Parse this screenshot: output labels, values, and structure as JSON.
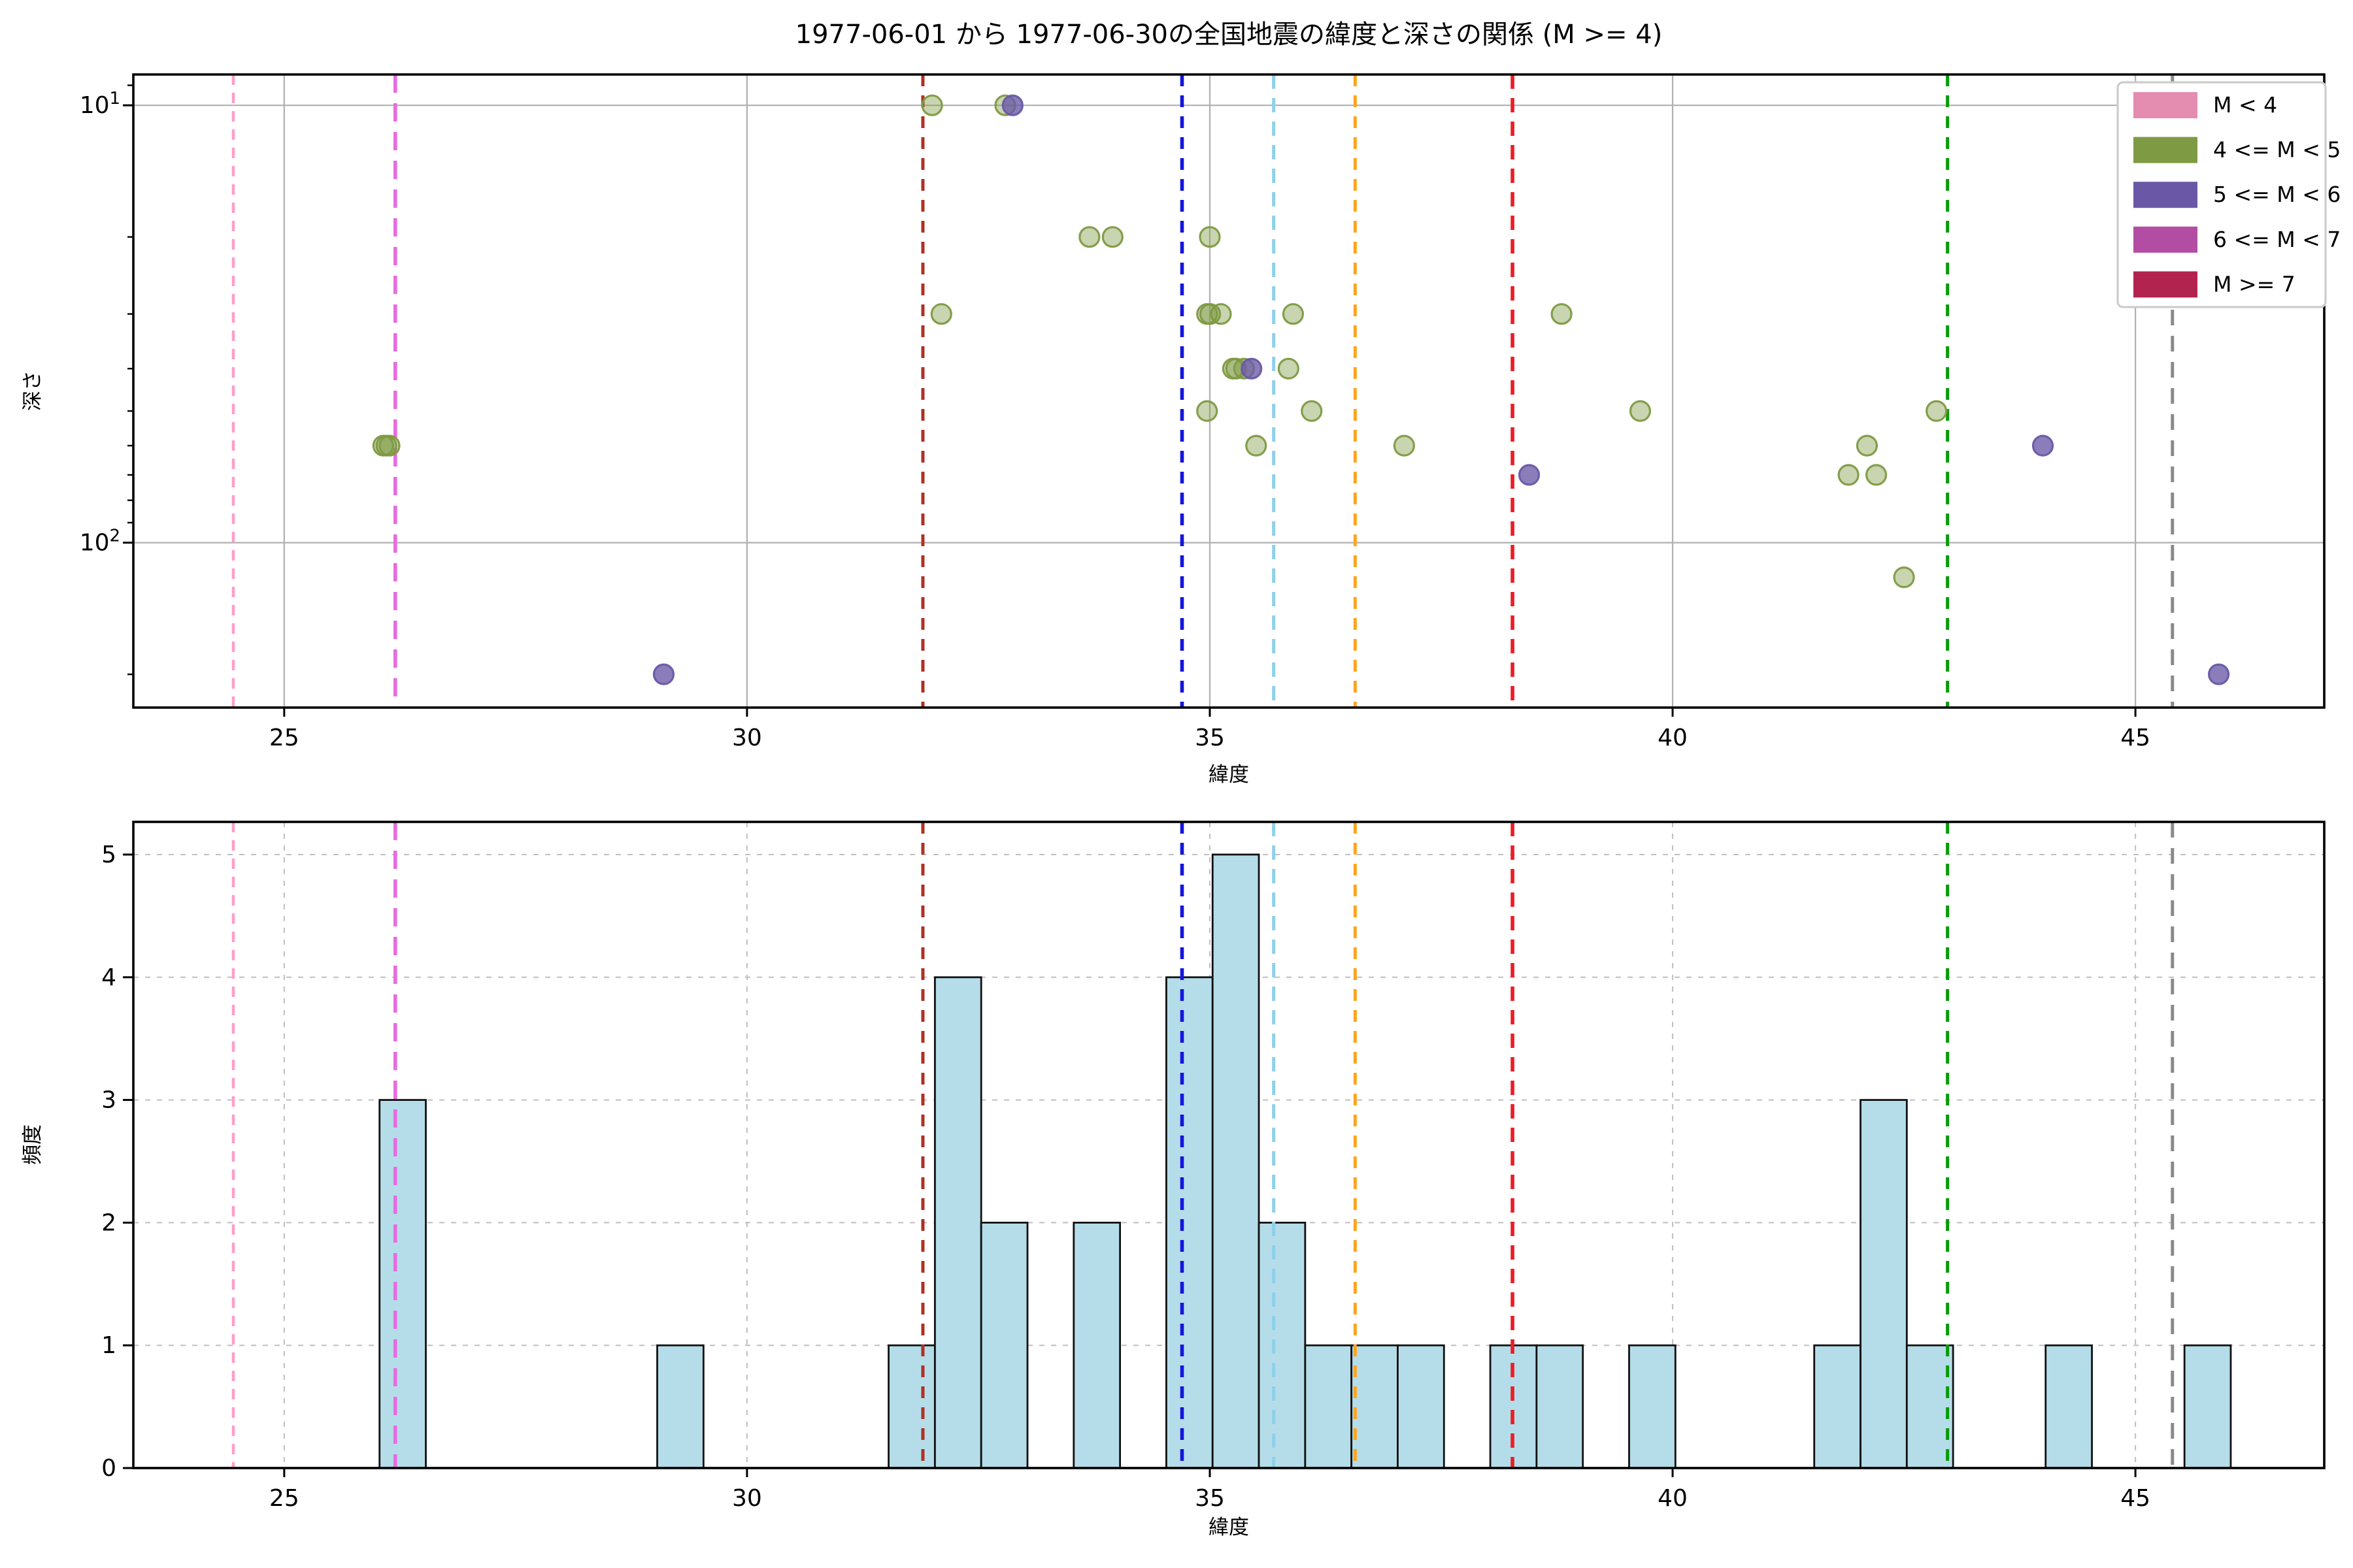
{
  "figure": {
    "title": "1977-06-01 から 1977-06-30の全国地震の緯度と深さの関係 (M >= 4)",
    "background": "#ffffff"
  },
  "axes": {
    "x": {
      "label": "緯度",
      "min": 23.37,
      "max": 47.04,
      "ticks": [
        25,
        30,
        35,
        40,
        45
      ]
    },
    "depth": {
      "label": "深さ",
      "scale": "log-inverted",
      "min": 8.6,
      "max": 238,
      "major_ticks": [
        10,
        100
      ],
      "major_tick_labels": [
        {
          "base": "10",
          "exp": "1"
        },
        {
          "base": "10",
          "exp": "2"
        }
      ],
      "minor_ticks": [
        9,
        20,
        30,
        40,
        50,
        60,
        70,
        80,
        90,
        200
      ]
    },
    "freq": {
      "label": "頻度",
      "min": 0,
      "max": 5.27,
      "ticks": [
        0,
        1,
        2,
        3,
        4,
        5
      ]
    }
  },
  "legend": {
    "items": [
      {
        "label": "M < 4",
        "color": "#e58cb1"
      },
      {
        "label": "4 <= M < 5",
        "color": "#7e9a43"
      },
      {
        "label": "5 <= M < 6",
        "color": "#6a58a7"
      },
      {
        "label": "6 <= M < 7",
        "color": "#b34da3"
      },
      {
        "label": "M >= 7",
        "color": "#b2234f"
      }
    ]
  },
  "vlines": [
    {
      "lat": 24.45,
      "color": "#ff9dc8",
      "width": 2.2,
      "dash": "8,6"
    },
    {
      "lat": 26.2,
      "color": "#e86be0",
      "width": 2.8,
      "dash": "14,8"
    },
    {
      "lat": 31.9,
      "color": "#b03024",
      "width": 2.5,
      "dash": "9,7"
    },
    {
      "lat": 34.7,
      "color": "#1515dd",
      "width": 2.8,
      "dash": "9,7"
    },
    {
      "lat": 35.69,
      "color": "#8ed0ea",
      "width": 2.5,
      "dash": "11,7"
    },
    {
      "lat": 36.57,
      "color": "#ffa41b",
      "width": 2.5,
      "dash": "9,7"
    },
    {
      "lat": 38.27,
      "color": "#ee1c25",
      "width": 2.8,
      "dash": "11,7"
    },
    {
      "lat": 42.97,
      "color": "#089c08",
      "width": 2.5,
      "dash": "9,7"
    },
    {
      "lat": 45.4,
      "color": "#8a8a8a",
      "width": 2.5,
      "dash": "12,8"
    }
  ],
  "chart_data": [
    {
      "type": "scatter",
      "title": "1977-06-01 から 1977-06-30の全国地震の緯度と深さの関係 (M >= 4)",
      "xlabel": "緯度",
      "ylabel": "深さ",
      "xlim": [
        23.37,
        47.04
      ],
      "ylim_depth_log_inverted": [
        8.6,
        238
      ],
      "grid": "solid",
      "legend_position": "upper right",
      "series": [
        {
          "name": "4 <= M < 5",
          "color": "#7e9a43",
          "points": [
            [
              26.07,
              60,
              3
            ],
            [
              32.0,
              10,
              1
            ],
            [
              32.79,
              10,
              1
            ],
            [
              33.7,
              20,
              1
            ],
            [
              33.95,
              20,
              1
            ],
            [
              35.0,
              20,
              1
            ],
            [
              32.1,
              30,
              1
            ],
            [
              34.97,
              30,
              2
            ],
            [
              35.12,
              30,
              1
            ],
            [
              35.9,
              30,
              1
            ],
            [
              38.8,
              30,
              1
            ],
            [
              35.25,
              40,
              2
            ],
            [
              35.37,
              40,
              1
            ],
            [
              35.85,
              40,
              1
            ],
            [
              34.97,
              50,
              1
            ],
            [
              36.1,
              50,
              1
            ],
            [
              39.65,
              50,
              1
            ],
            [
              42.85,
              50,
              1
            ],
            [
              35.5,
              60,
              1
            ],
            [
              37.1,
              60,
              1
            ],
            [
              42.1,
              60,
              1
            ],
            [
              41.9,
              70,
              1
            ],
            [
              42.2,
              70,
              1
            ],
            [
              42.5,
              120,
              1
            ]
          ]
        },
        {
          "name": "5 <= M < 6",
          "color": "#6a58a7",
          "points": [
            [
              32.87,
              10,
              1
            ],
            [
              35.45,
              40,
              1
            ],
            [
              38.45,
              70,
              1
            ],
            [
              44.0,
              60,
              1
            ],
            [
              29.1,
              200,
              1
            ],
            [
              45.9,
              200,
              1
            ]
          ]
        }
      ]
    },
    {
      "type": "bar",
      "xlabel": "緯度",
      "ylabel": "頻度",
      "xlim": [
        23.37,
        47.04
      ],
      "ylim": [
        0,
        5.27
      ],
      "grid": "dashed",
      "bar_color": "#b5dde9",
      "bar_edge_color": "#111111",
      "bin_width": 0.5,
      "bars": [
        {
          "left": 26.03,
          "count": 3
        },
        {
          "left": 29.03,
          "count": 1
        },
        {
          "left": 31.53,
          "count": 1
        },
        {
          "left": 32.03,
          "count": 4
        },
        {
          "left": 32.53,
          "count": 2
        },
        {
          "left": 33.53,
          "count": 2
        },
        {
          "left": 34.53,
          "count": 4
        },
        {
          "left": 35.03,
          "count": 5
        },
        {
          "left": 35.53,
          "count": 2
        },
        {
          "left": 36.03,
          "count": 1
        },
        {
          "left": 36.53,
          "count": 1
        },
        {
          "left": 37.03,
          "count": 1
        },
        {
          "left": 38.03,
          "count": 1
        },
        {
          "left": 38.53,
          "count": 1
        },
        {
          "left": 39.53,
          "count": 1
        },
        {
          "left": 41.53,
          "count": 1
        },
        {
          "left": 42.03,
          "count": 3
        },
        {
          "left": 42.53,
          "count": 1
        },
        {
          "left": 44.03,
          "count": 1
        },
        {
          "left": 45.53,
          "count": 1
        }
      ]
    }
  ],
  "style": {
    "grid_color_top": "#b0b0b0",
    "grid_color_bottom": "#bfbfbf",
    "spine_color": "#000000",
    "marker_radius": 7.5
  }
}
